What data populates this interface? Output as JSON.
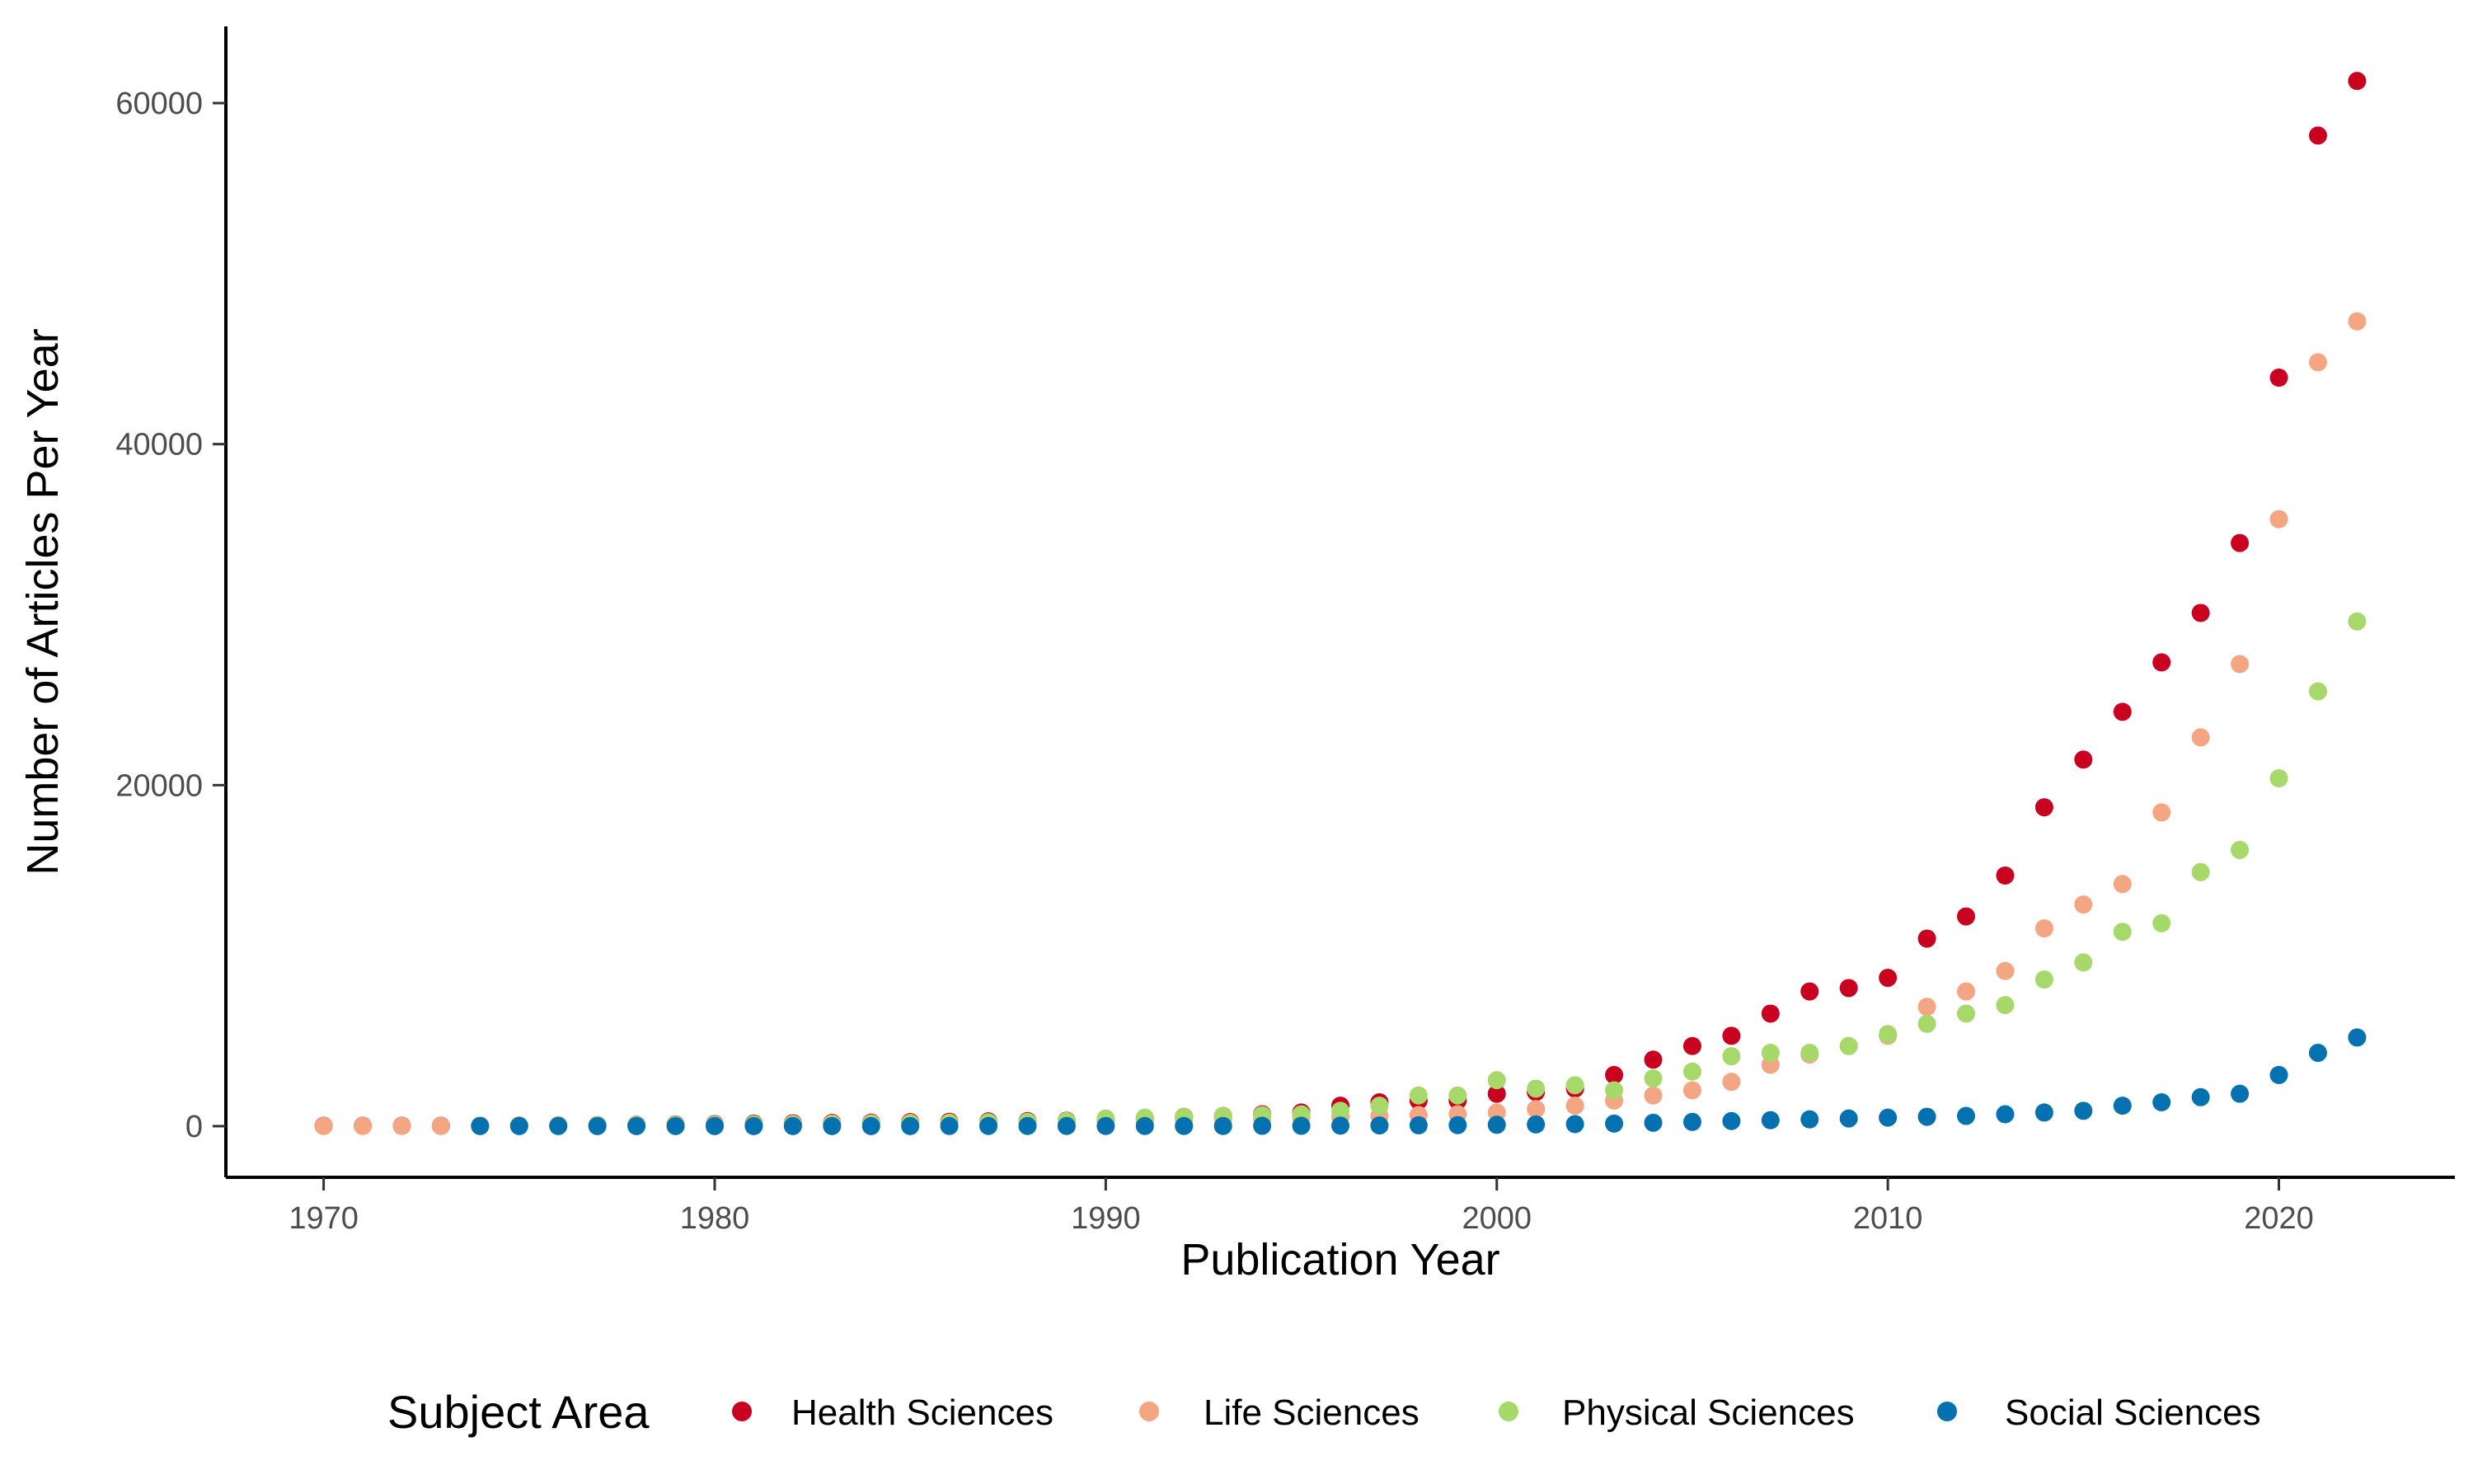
{
  "chart_data": {
    "type": "scatter",
    "title": "",
    "xlabel": "Publication Year",
    "ylabel": "Number of Articles Per Year",
    "xlim": [
      1967.5,
      2024.5
    ],
    "ylim": [
      -3000,
      64500
    ],
    "x_ticks": [
      1970,
      1980,
      1990,
      2000,
      2010,
      2020
    ],
    "y_ticks": [
      0,
      20000,
      40000,
      60000
    ],
    "x_tick_labels": [
      "1970",
      "1980",
      "1990",
      "2000",
      "2010",
      "2020"
    ],
    "y_tick_labels": [
      "0",
      "20000",
      "40000",
      "60000"
    ],
    "grid": false,
    "legend": {
      "title": "Subject Area",
      "position": "bottom"
    },
    "series": [
      {
        "name": "Health Sciences",
        "color": "#ca0020",
        "points": [
          [
            1970,
            20
          ],
          [
            1971,
            20
          ],
          [
            1972,
            20
          ],
          [
            1973,
            20
          ],
          [
            1974,
            30
          ],
          [
            1975,
            40
          ],
          [
            1976,
            50
          ],
          [
            1977,
            60
          ],
          [
            1978,
            80
          ],
          [
            1979,
            100
          ],
          [
            1980,
            120
          ],
          [
            1981,
            150
          ],
          [
            1982,
            170
          ],
          [
            1983,
            190
          ],
          [
            1984,
            210
          ],
          [
            1985,
            240
          ],
          [
            1986,
            260
          ],
          [
            1987,
            280
          ],
          [
            1988,
            300
          ],
          [
            1989,
            320
          ],
          [
            1990,
            350
          ],
          [
            1991,
            450
          ],
          [
            1992,
            550
          ],
          [
            1993,
            600
          ],
          [
            1994,
            700
          ],
          [
            1995,
            800
          ],
          [
            1996,
            1200
          ],
          [
            1997,
            1400
          ],
          [
            1998,
            1500
          ],
          [
            1999,
            1500
          ],
          [
            2000,
            1900
          ],
          [
            2001,
            2000
          ],
          [
            2002,
            2200
          ],
          [
            2003,
            3000
          ],
          [
            2004,
            3900
          ],
          [
            2005,
            4700
          ],
          [
            2006,
            5300
          ],
          [
            2007,
            6600
          ],
          [
            2008,
            7900
          ],
          [
            2009,
            8100
          ],
          [
            2010,
            8700
          ],
          [
            2011,
            11000
          ],
          [
            2012,
            12300
          ],
          [
            2013,
            14700
          ],
          [
            2014,
            18700
          ],
          [
            2015,
            21500
          ],
          [
            2016,
            24300
          ],
          [
            2017,
            27200
          ],
          [
            2018,
            30100
          ],
          [
            2019,
            34200
          ],
          [
            2020,
            43900
          ],
          [
            2021,
            58100
          ],
          [
            2022,
            61300
          ]
        ]
      },
      {
        "name": "Life Sciences",
        "color": "#f4a582",
        "points": [
          [
            1970,
            10
          ],
          [
            1971,
            10
          ],
          [
            1972,
            10
          ],
          [
            1973,
            10
          ],
          [
            1974,
            20
          ],
          [
            1975,
            30
          ],
          [
            1976,
            40
          ],
          [
            1977,
            50
          ],
          [
            1978,
            60
          ],
          [
            1979,
            80
          ],
          [
            1980,
            90
          ],
          [
            1981,
            110
          ],
          [
            1982,
            130
          ],
          [
            1983,
            150
          ],
          [
            1984,
            170
          ],
          [
            1985,
            190
          ],
          [
            1986,
            210
          ],
          [
            1987,
            230
          ],
          [
            1988,
            250
          ],
          [
            1989,
            270
          ],
          [
            1990,
            300
          ],
          [
            1991,
            330
          ],
          [
            1992,
            360
          ],
          [
            1993,
            400
          ],
          [
            1994,
            450
          ],
          [
            1995,
            500
          ],
          [
            1996,
            550
          ],
          [
            1997,
            600
          ],
          [
            1998,
            650
          ],
          [
            1999,
            700
          ],
          [
            2000,
            800
          ],
          [
            2001,
            1000
          ],
          [
            2002,
            1200
          ],
          [
            2003,
            1500
          ],
          [
            2004,
            1800
          ],
          [
            2005,
            2100
          ],
          [
            2006,
            2600
          ],
          [
            2007,
            3600
          ],
          [
            2008,
            4200
          ],
          [
            2009,
            4700
          ],
          [
            2010,
            5300
          ],
          [
            2011,
            7000
          ],
          [
            2012,
            7900
          ],
          [
            2013,
            9100
          ],
          [
            2014,
            11600
          ],
          [
            2015,
            13000
          ],
          [
            2016,
            14200
          ],
          [
            2017,
            18400
          ],
          [
            2018,
            22800
          ],
          [
            2019,
            27100
          ],
          [
            2020,
            35600
          ],
          [
            2021,
            44800
          ],
          [
            2022,
            47200
          ]
        ]
      },
      {
        "name": "Physical Sciences",
        "color": "#a6d96a",
        "points": [
          [
            1974,
            20
          ],
          [
            1975,
            30
          ],
          [
            1976,
            40
          ],
          [
            1977,
            50
          ],
          [
            1978,
            60
          ],
          [
            1979,
            70
          ],
          [
            1980,
            80
          ],
          [
            1981,
            90
          ],
          [
            1982,
            100
          ],
          [
            1983,
            120
          ],
          [
            1984,
            140
          ],
          [
            1985,
            160
          ],
          [
            1986,
            190
          ],
          [
            1987,
            220
          ],
          [
            1988,
            250
          ],
          [
            1989,
            300
          ],
          [
            1990,
            450
          ],
          [
            1991,
            500
          ],
          [
            1992,
            550
          ],
          [
            1993,
            600
          ],
          [
            1994,
            650
          ],
          [
            1995,
            700
          ],
          [
            1996,
            900
          ],
          [
            1997,
            1200
          ],
          [
            1998,
            1800
          ],
          [
            1999,
            1800
          ],
          [
            2000,
            2700
          ],
          [
            2001,
            2200
          ],
          [
            2002,
            2400
          ],
          [
            2003,
            2100
          ],
          [
            2004,
            2800
          ],
          [
            2005,
            3200
          ],
          [
            2006,
            4100
          ],
          [
            2007,
            4300
          ],
          [
            2008,
            4300
          ],
          [
            2009,
            4700
          ],
          [
            2010,
            5400
          ],
          [
            2011,
            6000
          ],
          [
            2012,
            6600
          ],
          [
            2013,
            7100
          ],
          [
            2014,
            8600
          ],
          [
            2015,
            9600
          ],
          [
            2016,
            11400
          ],
          [
            2017,
            11900
          ],
          [
            2018,
            14900
          ],
          [
            2019,
            16200
          ],
          [
            2020,
            20400
          ],
          [
            2021,
            25500
          ],
          [
            2022,
            29600
          ]
        ]
      },
      {
        "name": "Social Sciences",
        "color": "#0571b0",
        "points": [
          [
            1974,
            5
          ],
          [
            1975,
            5
          ],
          [
            1976,
            5
          ],
          [
            1977,
            5
          ],
          [
            1978,
            5
          ],
          [
            1979,
            5
          ],
          [
            1980,
            5
          ],
          [
            1981,
            5
          ],
          [
            1982,
            5
          ],
          [
            1983,
            5
          ],
          [
            1984,
            5
          ],
          [
            1985,
            5
          ],
          [
            1986,
            10
          ],
          [
            1987,
            10
          ],
          [
            1988,
            10
          ],
          [
            1989,
            10
          ],
          [
            1990,
            10
          ],
          [
            1991,
            10
          ],
          [
            1992,
            10
          ],
          [
            1993,
            10
          ],
          [
            1994,
            20
          ],
          [
            1995,
            20
          ],
          [
            1996,
            30
          ],
          [
            1997,
            40
          ],
          [
            1998,
            50
          ],
          [
            1999,
            60
          ],
          [
            2000,
            80
          ],
          [
            2001,
            100
          ],
          [
            2002,
            120
          ],
          [
            2003,
            150
          ],
          [
            2004,
            200
          ],
          [
            2005,
            250
          ],
          [
            2006,
            300
          ],
          [
            2007,
            350
          ],
          [
            2008,
            400
          ],
          [
            2009,
            450
          ],
          [
            2010,
            500
          ],
          [
            2011,
            550
          ],
          [
            2012,
            600
          ],
          [
            2013,
            700
          ],
          [
            2014,
            800
          ],
          [
            2015,
            900
          ],
          [
            2016,
            1200
          ],
          [
            2017,
            1400
          ],
          [
            2018,
            1700
          ],
          [
            2019,
            1900
          ],
          [
            2020,
            3000
          ],
          [
            2021,
            4300
          ],
          [
            2022,
            5200
          ]
        ]
      }
    ]
  }
}
